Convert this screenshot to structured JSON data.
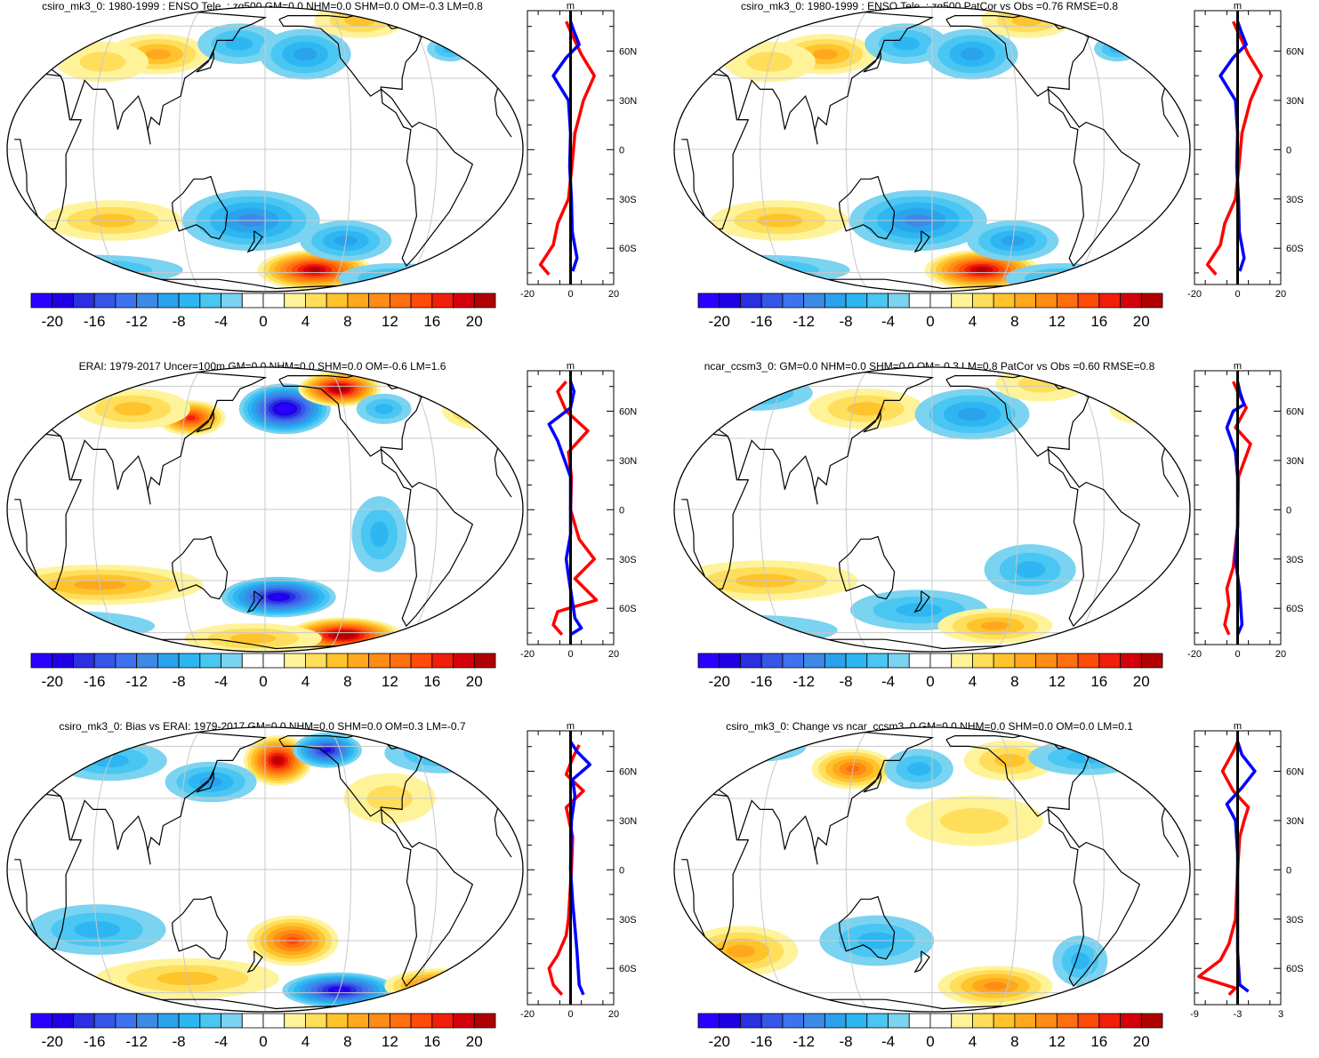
{
  "panels": [
    {
      "title": "csiro_mk3_0: 1980-1999 : ENSO Tele. : zg500 GM=0.0 NHM=0.0 SHM=0.0 OM=-0.3 LM=0.8",
      "unit": "m",
      "profile_x_ticks": [
        "-20",
        "0",
        "20"
      ],
      "anomalies": [
        {
          "lon": 100,
          "lat": 42,
          "sx": 22,
          "sy": 8,
          "v": 8
        },
        {
          "lon": 160,
          "lat": 48,
          "sx": 18,
          "sy": 8,
          "v": -6
        },
        {
          "lon": -150,
          "lat": 42,
          "sx": 20,
          "sy": 10,
          "v": -8
        },
        {
          "lon": -100,
          "lat": 65,
          "sx": 20,
          "sy": 7,
          "v": 5
        },
        {
          "lon": -40,
          "lat": 45,
          "sx": 10,
          "sy": 5,
          "v": -5
        },
        {
          "lon": 60,
          "lat": 38,
          "sx": 20,
          "sy": 8,
          "v": 4
        },
        {
          "lon": 70,
          "lat": -30,
          "sx": 30,
          "sy": 8,
          "v": 6
        },
        {
          "lon": 170,
          "lat": -30,
          "sx": 30,
          "sy": 12,
          "v": -10
        },
        {
          "lon": -140,
          "lat": -58,
          "sx": 25,
          "sy": 8,
          "v": 20
        },
        {
          "lon": -120,
          "lat": -40,
          "sx": 20,
          "sy": 8,
          "v": -8
        },
        {
          "lon": 40,
          "lat": -58,
          "sx": 40,
          "sy": 6,
          "v": -5
        },
        {
          "lon": -70,
          "lat": -65,
          "sx": 25,
          "sy": 6,
          "v": -5
        }
      ],
      "profile_red": [
        [
          -50,
          -76
        ],
        [
          -70,
          -70
        ],
        [
          -40,
          -58
        ],
        [
          -30,
          -45
        ],
        [
          -5,
          -30
        ],
        [
          3,
          -10
        ],
        [
          10,
          10
        ],
        [
          30,
          30
        ],
        [
          55,
          45
        ],
        [
          25,
          58
        ],
        [
          0,
          72
        ],
        [
          -10,
          78
        ]
      ],
      "profile_blue": [
        [
          5,
          -74
        ],
        [
          15,
          -66
        ],
        [
          4,
          -50
        ],
        [
          2,
          -30
        ],
        [
          -2,
          -10
        ],
        [
          0,
          10
        ],
        [
          -5,
          30
        ],
        [
          -40,
          45
        ],
        [
          -10,
          56
        ],
        [
          20,
          64
        ],
        [
          8,
          72
        ],
        [
          0,
          78
        ]
      ]
    },
    {
      "title": "csiro_mk3_0: 1980-1999 : ENSO Tele. : zg500 PatCor vs Obs =0.76 RMSE=0.8",
      "unit": "m",
      "profile_x_ticks": [
        "-20",
        "0",
        "20"
      ],
      "anomalies": [
        {
          "lon": 100,
          "lat": 42,
          "sx": 22,
          "sy": 8,
          "v": 8
        },
        {
          "lon": 160,
          "lat": 48,
          "sx": 18,
          "sy": 8,
          "v": -6
        },
        {
          "lon": -150,
          "lat": 42,
          "sx": 20,
          "sy": 10,
          "v": -8
        },
        {
          "lon": -100,
          "lat": 65,
          "sx": 20,
          "sy": 7,
          "v": 5
        },
        {
          "lon": -40,
          "lat": 45,
          "sx": 10,
          "sy": 5,
          "v": -5
        },
        {
          "lon": 60,
          "lat": 38,
          "sx": 20,
          "sy": 8,
          "v": 4
        },
        {
          "lon": 70,
          "lat": -30,
          "sx": 30,
          "sy": 8,
          "v": 6
        },
        {
          "lon": 170,
          "lat": -30,
          "sx": 30,
          "sy": 12,
          "v": -10
        },
        {
          "lon": -140,
          "lat": -58,
          "sx": 25,
          "sy": 8,
          "v": 20
        },
        {
          "lon": -120,
          "lat": -40,
          "sx": 20,
          "sy": 8,
          "v": -8
        },
        {
          "lon": 40,
          "lat": -58,
          "sx": 40,
          "sy": 6,
          "v": -5
        },
        {
          "lon": -70,
          "lat": -65,
          "sx": 25,
          "sy": 6,
          "v": -5
        }
      ],
      "profile_red": [
        [
          -50,
          -76
        ],
        [
          -70,
          -70
        ],
        [
          -40,
          -58
        ],
        [
          -30,
          -45
        ],
        [
          -5,
          -30
        ],
        [
          3,
          -10
        ],
        [
          10,
          10
        ],
        [
          30,
          30
        ],
        [
          55,
          45
        ],
        [
          25,
          58
        ],
        [
          0,
          72
        ],
        [
          -10,
          78
        ]
      ],
      "profile_blue": [
        [
          5,
          -74
        ],
        [
          15,
          -66
        ],
        [
          4,
          -50
        ],
        [
          2,
          -30
        ],
        [
          -2,
          -10
        ],
        [
          0,
          10
        ],
        [
          -5,
          30
        ],
        [
          -40,
          45
        ],
        [
          -10,
          56
        ],
        [
          20,
          64
        ],
        [
          8,
          72
        ],
        [
          0,
          78
        ]
      ]
    },
    {
      "title": "ERAI: 1979-2017 Uncer=100m GM=0.0 NHM=0.0 SHM=0.0 OM=-0.6 LM=1.6",
      "unit": "m",
      "profile_x_ticks": [
        "-20",
        "0",
        "20"
      ],
      "anomalies": [
        {
          "lon": -165,
          "lat": 45,
          "sx": 20,
          "sy": 10,
          "v": -22
        },
        {
          "lon": -120,
          "lat": 58,
          "sx": 18,
          "sy": 7,
          "v": 22
        },
        {
          "lon": 125,
          "lat": 40,
          "sx": 15,
          "sy": 7,
          "v": 16
        },
        {
          "lon": 80,
          "lat": 45,
          "sx": 25,
          "sy": 8,
          "v": 6
        },
        {
          "lon": -20,
          "lat": 45,
          "sx": 15,
          "sy": 8,
          "v": 7
        },
        {
          "lon": -90,
          "lat": 45,
          "sx": 12,
          "sy": 6,
          "v": -5
        },
        {
          "lon": 60,
          "lat": -32,
          "sx": 45,
          "sy": 8,
          "v": 8
        },
        {
          "lon": -170,
          "lat": -38,
          "sx": 25,
          "sy": 8,
          "v": -20
        },
        {
          "lon": -115,
          "lat": -62,
          "sx": 25,
          "sy": 7,
          "v": 22
        },
        {
          "lon": -100,
          "lat": -10,
          "sx": 12,
          "sy": 15,
          "v": -6
        },
        {
          "lon": 20,
          "lat": -55,
          "sx": 40,
          "sy": 6,
          "v": -4
        },
        {
          "lon": 170,
          "lat": -65,
          "sx": 30,
          "sy": 6,
          "v": 6
        }
      ],
      "profile_red": [
        [
          -20,
          -76
        ],
        [
          -40,
          -70
        ],
        [
          -30,
          -62
        ],
        [
          60,
          -55
        ],
        [
          10,
          -42
        ],
        [
          55,
          -30
        ],
        [
          20,
          -18
        ],
        [
          0,
          0
        ],
        [
          2,
          20
        ],
        [
          -5,
          35
        ],
        [
          40,
          48
        ],
        [
          -10,
          60
        ],
        [
          -30,
          72
        ],
        [
          -10,
          78
        ]
      ],
      "profile_blue": [
        [
          0,
          -76
        ],
        [
          25,
          -72
        ],
        [
          10,
          -66
        ],
        [
          -5,
          -40
        ],
        [
          -10,
          -30
        ],
        [
          0,
          -15
        ],
        [
          0,
          20
        ],
        [
          -30,
          42
        ],
        [
          -50,
          52
        ],
        [
          0,
          62
        ],
        [
          8,
          72
        ],
        [
          0,
          78
        ]
      ]
    },
    {
      "title": "ncar_ccsm3_0: GM=0.0 NHM=0.0 SHM=0.0 OM=-0.3 LM=0.8 PatCor vs Obs =0.60 RMSE=0.8",
      "unit": "m",
      "profile_x_ticks": [
        "-20",
        "0",
        "20"
      ],
      "anomalies": [
        {
          "lon": 130,
          "lat": 45,
          "sx": 25,
          "sy": 8,
          "v": 6
        },
        {
          "lon": -150,
          "lat": 42,
          "sx": 25,
          "sy": 10,
          "v": -8
        },
        {
          "lon": -90,
          "lat": 62,
          "sx": 20,
          "sy": 7,
          "v": 4
        },
        {
          "lon": 40,
          "lat": 55,
          "sx": 25,
          "sy": 7,
          "v": -5
        },
        {
          "lon": -20,
          "lat": 45,
          "sx": 15,
          "sy": 6,
          "v": 4
        },
        {
          "lon": 60,
          "lat": -30,
          "sx": 40,
          "sy": 8,
          "v": 5
        },
        {
          "lon": 170,
          "lat": -45,
          "sx": 30,
          "sy": 8,
          "v": -6
        },
        {
          "lon": -130,
          "lat": -55,
          "sx": 25,
          "sy": 7,
          "v": 8
        },
        {
          "lon": -110,
          "lat": -25,
          "sx": 20,
          "sy": 10,
          "v": -6
        },
        {
          "lon": 30,
          "lat": -58,
          "sx": 40,
          "sy": 6,
          "v": -4
        }
      ],
      "profile_red": [
        [
          -20,
          -76
        ],
        [
          -30,
          -70
        ],
        [
          -20,
          -58
        ],
        [
          -25,
          -48
        ],
        [
          -10,
          -35
        ],
        [
          0,
          -10
        ],
        [
          2,
          20
        ],
        [
          30,
          40
        ],
        [
          -5,
          50
        ],
        [
          20,
          62
        ],
        [
          0,
          72
        ],
        [
          -10,
          78
        ]
      ],
      "profile_blue": [
        [
          0,
          -76
        ],
        [
          10,
          -70
        ],
        [
          5,
          -50
        ],
        [
          -5,
          -30
        ],
        [
          0,
          -10
        ],
        [
          0,
          20
        ],
        [
          -5,
          35
        ],
        [
          -25,
          50
        ],
        [
          -10,
          60
        ],
        [
          15,
          64
        ],
        [
          5,
          72
        ],
        [
          0,
          78
        ]
      ]
    },
    {
      "title": "csiro_mk3_0: Bias vs ERAI: 1979-2017 GM=0.0 NHM=0.0 SHM=0.0 OM=0.3 LM=-0.7",
      "unit": "m",
      "profile_x_ticks": [
        "-20",
        "0",
        "20"
      ],
      "anomalies": [
        {
          "lon": -170,
          "lat": 50,
          "sx": 15,
          "sy": 10,
          "v": 20
        },
        {
          "lon": -130,
          "lat": 57,
          "sx": 15,
          "sy": 7,
          "v": -18
        },
        {
          "lon": 140,
          "lat": 38,
          "sx": 20,
          "sy": 8,
          "v": -8
        },
        {
          "lon": 60,
          "lat": 50,
          "sx": 25,
          "sy": 8,
          "v": -5
        },
        {
          "lon": -40,
          "lat": 55,
          "sx": 25,
          "sy": 8,
          "v": -6
        },
        {
          "lon": -90,
          "lat": 30,
          "sx": 20,
          "sy": 10,
          "v": 4
        },
        {
          "lon": -160,
          "lat": -30,
          "sx": 20,
          "sy": 10,
          "v": 14
        },
        {
          "lon": -120,
          "lat": -58,
          "sx": 25,
          "sy": 7,
          "v": -20
        },
        {
          "lon": -40,
          "lat": -55,
          "sx": 25,
          "sy": 7,
          "v": 14
        },
        {
          "lon": 60,
          "lat": -25,
          "sx": 30,
          "sy": 10,
          "v": -5
        },
        {
          "lon": 120,
          "lat": -50,
          "sx": 40,
          "sy": 8,
          "v": 5
        }
      ],
      "profile_red": [
        [
          -20,
          -76
        ],
        [
          -40,
          -70
        ],
        [
          -50,
          -60
        ],
        [
          -30,
          -52
        ],
        [
          -10,
          -40
        ],
        [
          -5,
          -30
        ],
        [
          2,
          0
        ],
        [
          5,
          20
        ],
        [
          -10,
          38
        ],
        [
          30,
          48
        ],
        [
          -10,
          58
        ],
        [
          5,
          68
        ],
        [
          20,
          76
        ]
      ],
      "profile_blue": [
        [
          30,
          -76
        ],
        [
          20,
          -70
        ],
        [
          15,
          -50
        ],
        [
          10,
          -35
        ],
        [
          5,
          -20
        ],
        [
          0,
          0
        ],
        [
          2,
          30
        ],
        [
          10,
          45
        ],
        [
          5,
          55
        ],
        [
          45,
          64
        ],
        [
          15,
          72
        ],
        [
          0,
          78
        ]
      ]
    },
    {
      "title": "csiro_mk3_0: Change vs ncar_ccsm3_0 GM=0.0 NHM=0.0 SHM=0.0 OM=0.0 LM=0.1",
      "unit": "m",
      "profile_x_ticks": [
        "-9",
        "-3",
        "3"
      ],
      "anomalies": [
        {
          "lon": 120,
          "lat": 45,
          "sx": 18,
          "sy": 8,
          "v": 12
        },
        {
          "lon": 170,
          "lat": 45,
          "sx": 15,
          "sy": 8,
          "v": -5
        },
        {
          "lon": -150,
          "lat": 20,
          "sx": 30,
          "sy": 10,
          "v": 4
        },
        {
          "lon": -120,
          "lat": 50,
          "sx": 20,
          "sy": 8,
          "v": 5
        },
        {
          "lon": -60,
          "lat": 52,
          "sx": 25,
          "sy": 7,
          "v": -6
        },
        {
          "lon": 40,
          "lat": 60,
          "sx": 20,
          "sy": 6,
          "v": -5
        },
        {
          "lon": 40,
          "lat": -35,
          "sx": 25,
          "sy": 10,
          "v": 8
        },
        {
          "lon": 140,
          "lat": -30,
          "sx": 25,
          "sy": 10,
          "v": -5
        },
        {
          "lon": -130,
          "lat": -55,
          "sx": 25,
          "sy": 8,
          "v": 9
        },
        {
          "lon": -70,
          "lat": -40,
          "sx": 12,
          "sy": 10,
          "v": -6
        },
        {
          "lon": -20,
          "lat": -55,
          "sx": 15,
          "sy": 6,
          "v": 8
        }
      ],
      "profile_red": [
        [
          -20,
          -76
        ],
        [
          -5,
          -72
        ],
        [
          -90,
          -65
        ],
        [
          -40,
          -55
        ],
        [
          -20,
          -45
        ],
        [
          -5,
          -30
        ],
        [
          0,
          0
        ],
        [
          5,
          20
        ],
        [
          15,
          30
        ],
        [
          25,
          38
        ],
        [
          -10,
          48
        ],
        [
          -35,
          60
        ],
        [
          -10,
          72
        ],
        [
          0,
          78
        ]
      ],
      "profile_blue": [
        [
          25,
          -74
        ],
        [
          5,
          -70
        ],
        [
          0,
          -50
        ],
        [
          0,
          -20
        ],
        [
          0,
          10
        ],
        [
          -5,
          30
        ],
        [
          -25,
          40
        ],
        [
          10,
          50
        ],
        [
          40,
          60
        ],
        [
          10,
          70
        ],
        [
          0,
          78
        ]
      ]
    }
  ],
  "map": {
    "lat_labels": [
      "60N",
      "30N",
      "0",
      "30S",
      "60S"
    ],
    "grid_color": "#c8c8c8",
    "coast_color": "#000000"
  },
  "colorbar": {
    "labels": [
      "-20",
      "-16",
      "-12",
      "-8",
      "-4",
      "0",
      "4",
      "8",
      "12",
      "16",
      "20"
    ],
    "levels": [
      -22,
      -20,
      -18,
      -16,
      -14,
      -12,
      -10,
      -8,
      -6,
      -4,
      -2,
      0,
      2,
      4,
      6,
      8,
      10,
      12,
      14,
      16,
      18,
      20,
      22
    ],
    "colors": [
      "#2a00ff",
      "#2000e6",
      "#2a2fe0",
      "#3556e6",
      "#3f72ee",
      "#3d8ae6",
      "#2aa2ec",
      "#2db6f2",
      "#4ac6f2",
      "#7ad3f0",
      "#ffffff",
      "#ffffff",
      "#fff39a",
      "#ffde5c",
      "#ffc32b",
      "#ffa81e",
      "#ff8c14",
      "#ff6e0f",
      "#ff4a0a",
      "#f01e0a",
      "#d4000a",
      "#b00000"
    ],
    "profile_red_color": "#ff0000",
    "profile_blue_color": "#0000ff"
  }
}
